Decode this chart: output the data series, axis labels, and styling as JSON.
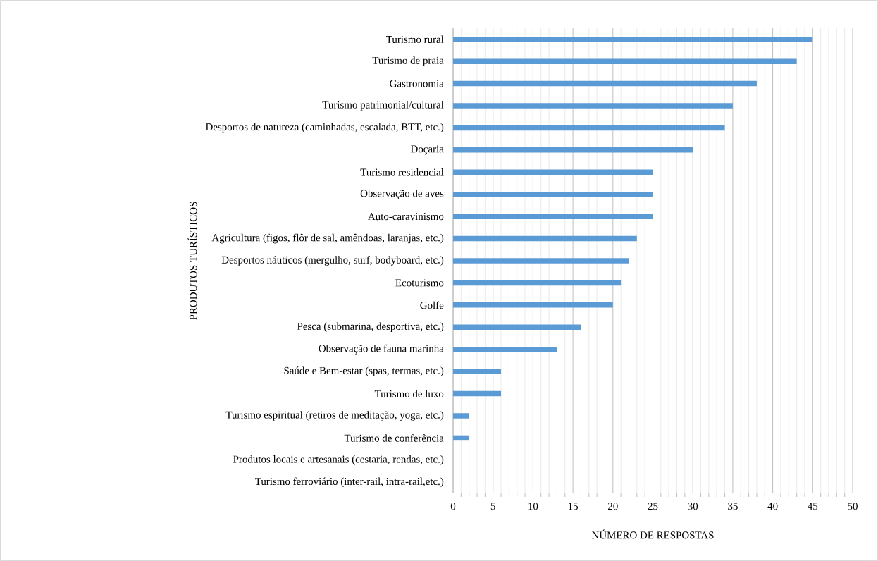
{
  "chart_data": {
    "type": "bar",
    "orientation": "horizontal",
    "xlabel": "NÚMERO DE RESPOSTAS",
    "ylabel": "PRODUTOS TURÍSTICOS",
    "categories": [
      "Turismo rural",
      "Turismo de praia",
      "Gastronomia",
      "Turismo patrimonial/cultural",
      "Desportos de natureza (caminhadas, escalada, BTT, etc.)",
      "Doçaria",
      "Turismo residencial",
      "Observação de aves",
      "Auto-caravinismo",
      "Agricultura (figos, flôr de sal, amêndoas, laranjas, etc.)",
      "Desportos náuticos (mergulho, surf, bodyboard, etc.)",
      "Ecoturismo",
      "Golfe",
      "Pesca (submarina, desportiva, etc.)",
      "Observação de fauna marinha",
      "Saúde e Bem-estar (spas, termas, etc.)",
      "Turismo de luxo",
      "Turismo espiritual (retiros de meditação, yoga, etc.)",
      "Turismo de conferência",
      "Produtos locais e artesanais (cestaria, rendas, etc.)",
      "Turismo ferroviário (inter-rail, intra-rail,etc.)"
    ],
    "values": [
      45,
      43,
      38,
      35,
      34,
      30,
      25,
      25,
      25,
      23,
      22,
      21,
      20,
      16,
      13,
      6,
      6,
      2,
      2,
      0,
      0
    ],
    "color": "#5b9bd5",
    "xlim": [
      0,
      50
    ],
    "xticks": [
      0,
      5,
      10,
      15,
      20,
      25,
      30,
      35,
      40,
      45,
      50
    ],
    "grid": "x"
  }
}
